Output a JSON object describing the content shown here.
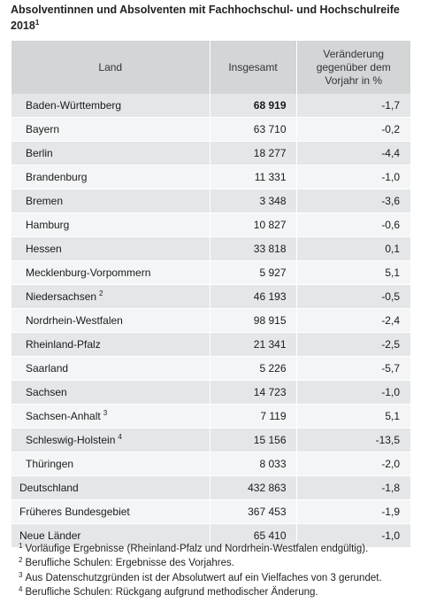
{
  "title": {
    "text": "Absolventinnen und Absolventen mit Fachhochschul- und Hochschulreife 2018",
    "footnote_ref": "1"
  },
  "table": {
    "headers": {
      "land": "Land",
      "insgesamt": "Insgesamt",
      "change": "Veränderung gegenüber dem Vorjahr in %"
    },
    "rows": [
      {
        "land": "Baden-Württemberg",
        "fn": "",
        "total": "68 919",
        "change": "-1,7"
      },
      {
        "land": "Bayern",
        "fn": "",
        "total": "63 710",
        "change": "-0,2"
      },
      {
        "land": "Berlin",
        "fn": "",
        "total": "18 277",
        "change": "-4,4"
      },
      {
        "land": "Brandenburg",
        "fn": "",
        "total": "11 331",
        "change": "-1,0"
      },
      {
        "land": "Bremen",
        "fn": "",
        "total": "3 348",
        "change": "-3,6"
      },
      {
        "land": "Hamburg",
        "fn": "",
        "total": "10 827",
        "change": "-0,6"
      },
      {
        "land": "Hessen",
        "fn": "",
        "total": "33 818",
        "change": "0,1"
      },
      {
        "land": "Mecklenburg-Vorpommern",
        "fn": "",
        "total": "5 927",
        "change": "5,1"
      },
      {
        "land": "Niedersachsen",
        "fn": "2",
        "total": "46 193",
        "change": "-0,5"
      },
      {
        "land": "Nordrhein-Westfalen",
        "fn": "",
        "total": "98 915",
        "change": "-2,4"
      },
      {
        "land": "Rheinland-Pfalz",
        "fn": "",
        "total": "21 341",
        "change": "-2,5"
      },
      {
        "land": "Saarland",
        "fn": "",
        "total": "5 226",
        "change": "-5,7"
      },
      {
        "land": "Sachsen",
        "fn": "",
        "total": "14 723",
        "change": "-1,0"
      },
      {
        "land": "Sachsen-Anhalt",
        "fn": "3",
        "total": "7 119",
        "change": "5,1"
      },
      {
        "land": "Schleswig-Holstein",
        "fn": "4",
        "total": "15 156",
        "change": "-13,5"
      },
      {
        "land": "Thüringen",
        "fn": "",
        "total": "8 033",
        "change": "-2,0"
      },
      {
        "land": "Deutschland",
        "fn": "",
        "total": "432 863",
        "change": "-1,8"
      },
      {
        "land": "Früheres Bundesgebiet",
        "fn": "",
        "total": "367 453",
        "change": "-1,9"
      },
      {
        "land": "Neue Länder",
        "fn": "",
        "total": "65 410",
        "change": "-1,0"
      }
    ]
  },
  "footnotes": [
    {
      "num": "1",
      "text": "Vorläufige Ergebnisse (Rheinland-Pfalz und Nordrhein-Westfalen endgültig)."
    },
    {
      "num": "2",
      "text": "Berufliche Schulen: Ergebnisse des Vorjahres."
    },
    {
      "num": "3",
      "text": "Aus Datenschutzgründen ist der Absolutwert auf ein Vielfaches von 3 gerundet."
    },
    {
      "num": "4",
      "text": "Berufliche Schulen: Rückgang aufgrund methodischer Änderung."
    }
  ]
}
